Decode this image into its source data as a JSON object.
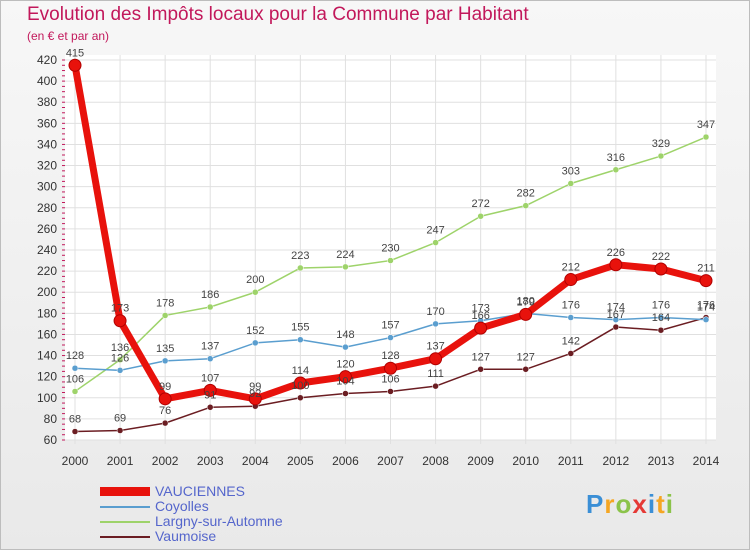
{
  "title": "Evolution des Impôts locaux pour la Commune par Habitant",
  "subtitle": "(en € et par an)",
  "logo": {
    "text": "Proxiti",
    "colors": [
      "#3b8fd6",
      "#f5a623",
      "#8bc34a",
      "#e53935",
      "#3b8fd6",
      "#f5a623",
      "#8bc34a"
    ]
  },
  "chart_data": {
    "type": "line",
    "xlabel": "",
    "ylabel": "",
    "x": [
      "2000",
      "2001",
      "2002",
      "2003",
      "2004",
      "2005",
      "2006",
      "2007",
      "2008",
      "2009",
      "2010",
      "2011",
      "2012",
      "2013",
      "2014"
    ],
    "ylim": [
      60,
      420
    ],
    "yticks": [
      60,
      80,
      100,
      120,
      140,
      160,
      180,
      200,
      220,
      240,
      260,
      280,
      300,
      320,
      340,
      360,
      380,
      400,
      420
    ],
    "grid": true,
    "legend_position": "bottom-left",
    "series": [
      {
        "name": "VAUCIENNES",
        "color": "#e8120c",
        "values": [
          415,
          173,
          99,
          107,
          99,
          114,
          120,
          128,
          137,
          166,
          179,
          212,
          226,
          222,
          211
        ]
      },
      {
        "name": "Coyolles",
        "color": "#5a9ecf",
        "values": [
          128,
          126,
          135,
          137,
          152,
          155,
          148,
          157,
          170,
          173,
          180,
          176,
          174,
          176,
          174
        ]
      },
      {
        "name": "Largny-sur-Automne",
        "color": "#9ed36a",
        "values": [
          106,
          136,
          178,
          186,
          200,
          223,
          224,
          230,
          247,
          272,
          282,
          303,
          316,
          329,
          347
        ]
      },
      {
        "name": "Vaumoise",
        "color": "#6b1d22",
        "values": [
          68,
          69,
          76,
          91,
          92,
          100,
          104,
          106,
          111,
          127,
          127,
          142,
          167,
          164,
          176
        ]
      }
    ]
  }
}
